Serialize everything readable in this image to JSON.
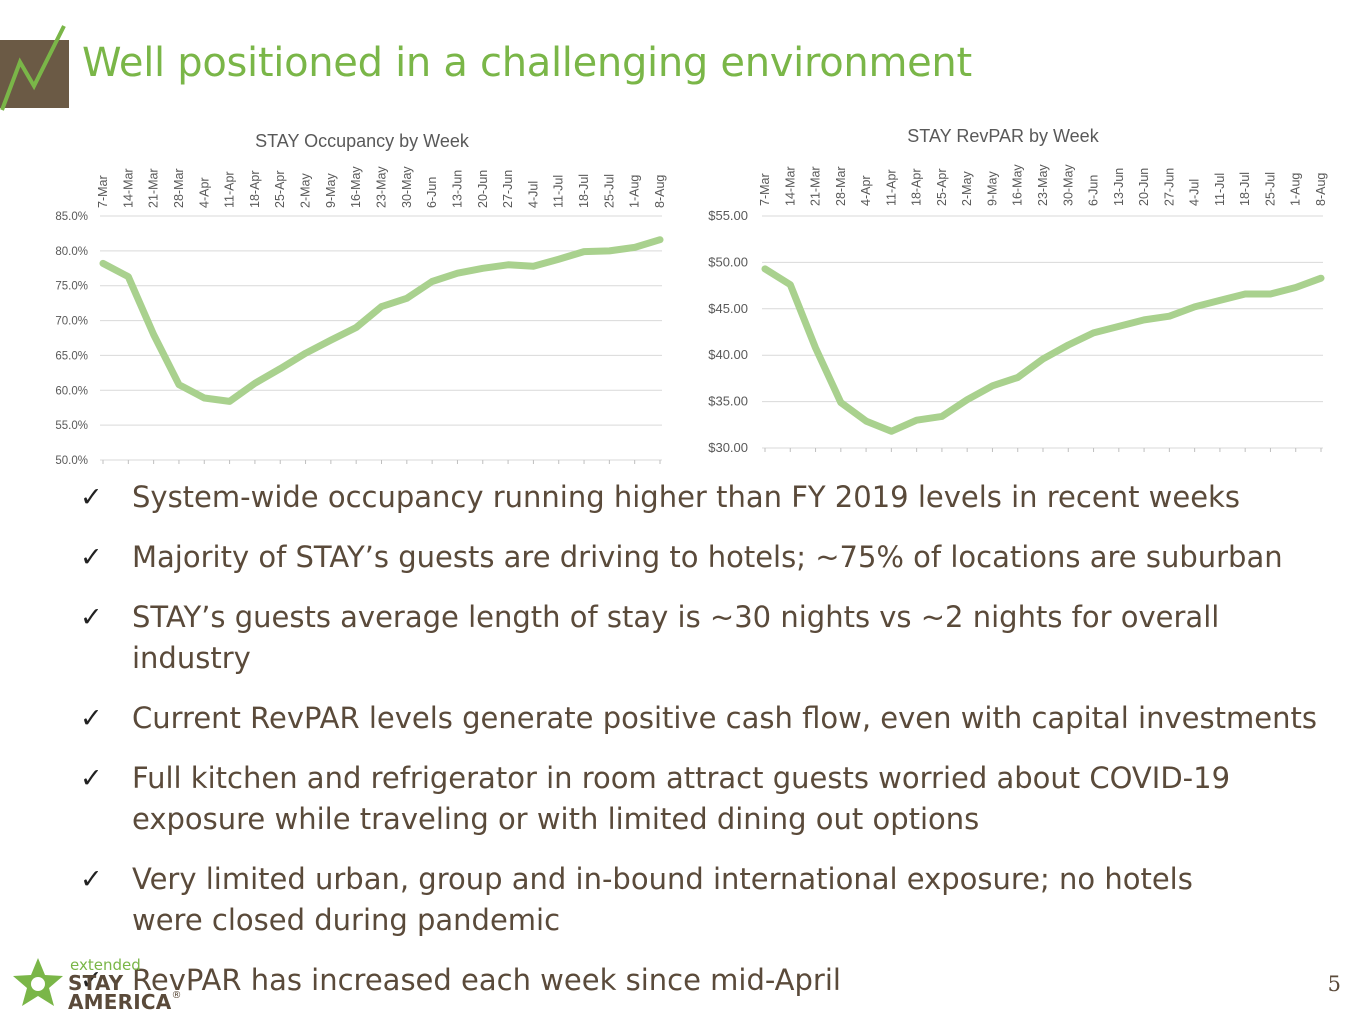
{
  "slide": {
    "title": "Well positioned in a challenging environment",
    "page_number": "5",
    "accent_color": "#7ab648",
    "logo_box_color": "#6b5a45"
  },
  "bullets": [
    "System-wide occupancy running higher than FY 2019 levels in recent weeks",
    "Majority of STAY’s guests are driving to hotels; ~75% of locations are suburban",
    "STAY’s guests average length of stay is ~30 nights vs ~2 nights for overall industry",
    "Current RevPAR levels generate positive cash flow, even with capital investments",
    "Full kitchen and refrigerator in room attract guests worried about COVID-19 exposure while traveling or with limited dining out options",
    "Very limited urban, group and in-bound international exposure; no hotels were closed during pandemic",
    "RevPAR has increased each week since mid-April"
  ],
  "check_glyph": "✓",
  "brand": {
    "extended": "extended",
    "stay": "STAY",
    "america": "AMERICA",
    "registered": "®"
  },
  "chart_data": [
    {
      "type": "line",
      "title": "STAY Occupancy by Week",
      "categories": [
        "7-Mar",
        "14-Mar",
        "21-Mar",
        "28-Mar",
        "4-Apr",
        "11-Apr",
        "18-Apr",
        "25-Apr",
        "2-May",
        "9-May",
        "16-May",
        "23-May",
        "30-May",
        "6-Jun",
        "13-Jun",
        "20-Jun",
        "27-Jun",
        "4-Jul",
        "11-Jul",
        "18-Jul",
        "25-Jul",
        "1-Aug",
        "8-Aug"
      ],
      "values": [
        78.2,
        76.3,
        68.0,
        60.8,
        58.9,
        58.4,
        61.0,
        63.1,
        65.3,
        67.2,
        69.0,
        72.0,
        73.2,
        75.6,
        76.8,
        77.5,
        78.0,
        77.8,
        78.8,
        79.9,
        80.0,
        80.5,
        81.6
      ],
      "yticks": [
        "85.0%",
        "80.0%",
        "75.0%",
        "70.0%",
        "65.0%",
        "60.0%",
        "55.0%",
        "50.0%"
      ],
      "ylim": [
        50,
        85
      ],
      "grid": true,
      "line_color": "#a9d18e"
    },
    {
      "type": "line",
      "title": "STAY RevPAR by Week",
      "categories": [
        "7-Mar",
        "14-Mar",
        "21-Mar",
        "28-Mar",
        "4-Apr",
        "11-Apr",
        "18-Apr",
        "25-Apr",
        "2-May",
        "9-May",
        "16-May",
        "23-May",
        "30-May",
        "6-Jun",
        "13-Jun",
        "20-Jun",
        "27-Jun",
        "4-Jul",
        "11-Jul",
        "18-Jul",
        "25-Jul",
        "1-Aug",
        "8-Aug"
      ],
      "values": [
        49.3,
        47.6,
        40.8,
        34.9,
        32.9,
        31.8,
        33.0,
        33.4,
        35.2,
        36.7,
        37.6,
        39.6,
        41.1,
        42.4,
        43.1,
        43.8,
        44.2,
        45.2,
        45.9,
        46.6,
        46.6,
        47.3,
        48.3
      ],
      "yticks": [
        "$55.00",
        "$50.00",
        "$45.00",
        "$40.00",
        "$35.00",
        "$30.00"
      ],
      "ylim": [
        30,
        55
      ],
      "grid": true,
      "line_color": "#a9d18e"
    }
  ]
}
